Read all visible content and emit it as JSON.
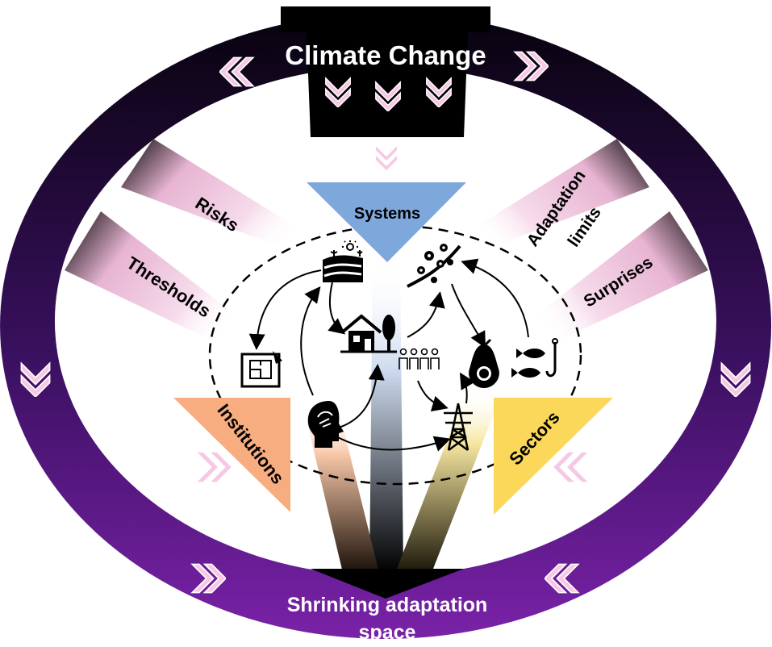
{
  "labels": {
    "top": "Climate Change",
    "bottom_line1": "Shrinking adaptation",
    "bottom_line2": "space",
    "systems": "Systems",
    "institutions": "Institutions",
    "sectors": "Sectors",
    "risks": "Risks",
    "thresholds": "Thresholds",
    "adaptation_line1": "Adaptation",
    "adaptation_line2": "limits",
    "surprises": "Surprises"
  },
  "colors": {
    "ring_top": "#07030d",
    "ring_bottom": "#7a22a8",
    "band_dark": "#000000",
    "band_pink": "#f3c9e3",
    "chevron": "#f6c8e4",
    "systems": "#7ea8dc",
    "institutions": "#f7ad80",
    "sectors": "#fcd85a",
    "white": "#ffffff"
  },
  "icons": [
    "farm-field-icon",
    "blossom-branch-icon",
    "house-icon",
    "people-group-icon",
    "blueprint-icon",
    "avocado-icon",
    "fish-hook-icon",
    "brain-head-icon",
    "power-tower-icon"
  ]
}
